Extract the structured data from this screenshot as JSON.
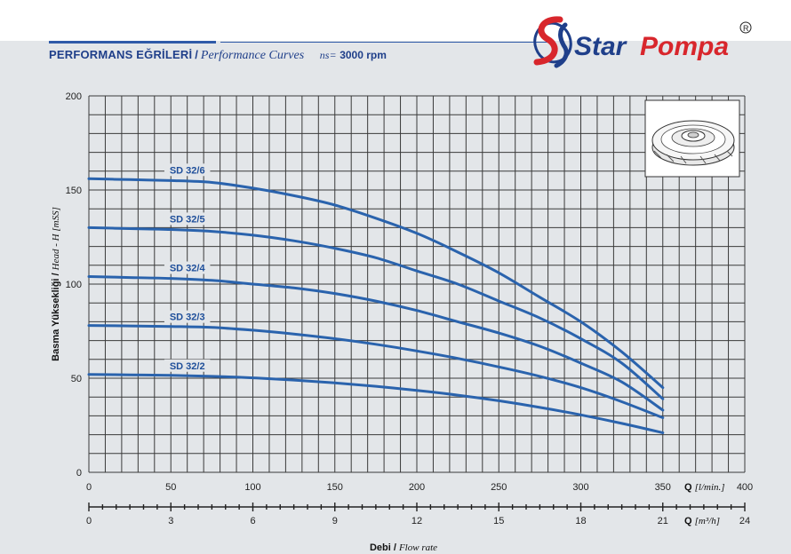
{
  "header": {
    "title_tr": "PERFORMANS EĞRİLERİ",
    "separator": "/",
    "title_en": "Performance Curves",
    "speed_label": "ns=",
    "speed_value": "3000 rpm"
  },
  "logo": {
    "brand": "Star Pompa",
    "registered": "®"
  },
  "chart_data": {
    "type": "line",
    "y_axis": {
      "label_tr": "Basma Yüksekliği",
      "label_sep": "/",
      "label_en": "Head - H [mSS]",
      "range": [
        0,
        200
      ],
      "ticks": [
        0,
        50,
        100,
        150,
        200
      ]
    },
    "x_axis_primary": {
      "label": "Q",
      "unit": "[l/min.]",
      "range": [
        0,
        400
      ],
      "ticks": [
        0,
        50,
        100,
        150,
        200,
        250,
        300,
        350,
        400
      ]
    },
    "x_axis_secondary": {
      "label": "Q",
      "unit": "[m³/h]",
      "range": [
        0,
        24
      ],
      "ticks": [
        0,
        3,
        6,
        9,
        12,
        15,
        18,
        21,
        24
      ]
    },
    "x_caption_tr": "Debi",
    "x_caption_sep": "/",
    "x_caption_en": "Flow rate",
    "grid": true,
    "series": [
      {
        "name": "SD 32/6",
        "x": [
          0,
          25,
          50,
          75,
          100,
          125,
          150,
          175,
          200,
          225,
          250,
          275,
          300,
          325,
          350
        ],
        "y": [
          156,
          155.5,
          155,
          154,
          151,
          147,
          142,
          135,
          127,
          117,
          106,
          93,
          80,
          64,
          45
        ]
      },
      {
        "name": "SD 32/5",
        "x": [
          0,
          25,
          50,
          75,
          100,
          125,
          150,
          175,
          200,
          225,
          250,
          275,
          300,
          325,
          350
        ],
        "y": [
          130,
          129.5,
          129,
          128,
          126,
          123,
          119,
          114,
          107,
          100,
          91,
          82,
          71,
          58,
          39
        ]
      },
      {
        "name": "SD 32/4",
        "x": [
          0,
          25,
          50,
          75,
          100,
          125,
          150,
          175,
          200,
          225,
          250,
          275,
          300,
          325,
          350
        ],
        "y": [
          104,
          103.5,
          103,
          102,
          100,
          98,
          95,
          91,
          86,
          80,
          74,
          67,
          58,
          48,
          33
        ]
      },
      {
        "name": "SD 32/3",
        "x": [
          0,
          25,
          50,
          75,
          100,
          125,
          150,
          175,
          200,
          225,
          250,
          275,
          300,
          325,
          350
        ],
        "y": [
          78,
          77.8,
          77.5,
          77,
          75.5,
          73.5,
          71,
          68,
          64.5,
          60.5,
          56,
          51,
          45,
          37.5,
          29
        ]
      },
      {
        "name": "SD 32/2",
        "x": [
          0,
          25,
          50,
          75,
          100,
          125,
          150,
          175,
          200,
          225,
          250,
          275,
          300,
          325,
          350
        ],
        "y": [
          52,
          51.8,
          51.5,
          51,
          50.2,
          49,
          47.5,
          45.7,
          43.5,
          41,
          38,
          34.5,
          30.5,
          26,
          21
        ]
      }
    ]
  },
  "colors": {
    "curve": "#2a63ad",
    "header_blue": "#1f3f8a",
    "logo_red": "#d8262c",
    "logo_blue": "#1f3f8a",
    "panel": "#e3e6e9"
  },
  "inset": {
    "icon": "impeller-icon"
  }
}
